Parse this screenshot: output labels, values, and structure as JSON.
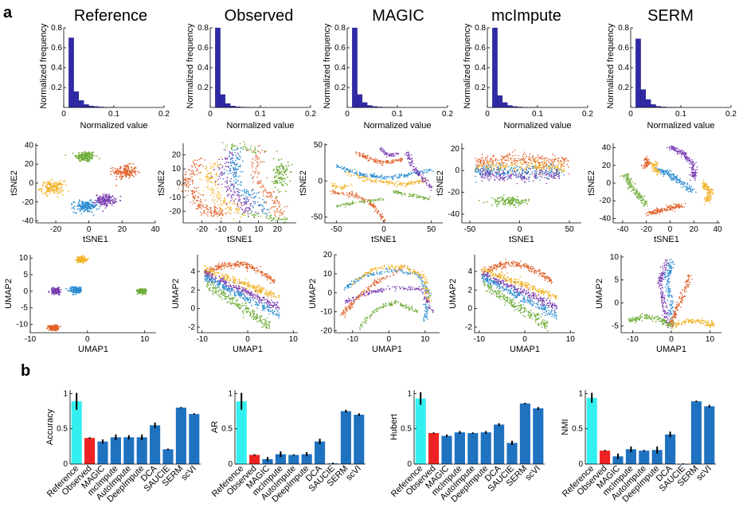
{
  "figure": {
    "panel_a_label": "a",
    "panel_b_label": "b",
    "methods": [
      "Reference",
      "Observed",
      "MAGIC",
      "mcImpute",
      "SERM"
    ],
    "colors": {
      "hist_bar": "#2f2aa6",
      "clusters": [
        "#e0622b",
        "#f2b42a",
        "#7b3fb2",
        "#70ad3a",
        "#2d8ed1"
      ],
      "bar_reference": "#33f0f0",
      "bar_observed": "#ee2222",
      "bar_other": "#1f72bf",
      "error_bar": "#000000"
    }
  },
  "chart_data": [
    {
      "type": "histogram",
      "row": "histograms",
      "methods": [
        "Reference",
        "Observed",
        "MAGIC",
        "mcImpute",
        "SERM"
      ],
      "xlabel": "Normalized value",
      "ylabel": "Normalized frequency",
      "xlim": [
        0,
        0.2
      ],
      "ylim": [
        0,
        0.8
      ],
      "xticks": [
        "0",
        "0.1",
        "0.2"
      ],
      "yticks": [
        "0.2",
        "0.4",
        "0.6",
        "0.8"
      ],
      "bin_width": 0.01,
      "series": [
        {
          "method": "Reference",
          "values": [
            0,
            0.7,
            0.16,
            0.07,
            0.03,
            0.015,
            0.01,
            0.005,
            0.003,
            0.002
          ]
        },
        {
          "method": "Observed",
          "values": [
            0,
            0.8,
            0.13,
            0.04,
            0.015,
            0.008,
            0.004,
            0.002,
            0.001,
            0.001
          ]
        },
        {
          "method": "MAGIC",
          "values": [
            0,
            0.8,
            0.13,
            0.05,
            0.02,
            0.01,
            0.005,
            0.003,
            0.002,
            0.001
          ]
        },
        {
          "method": "mcImpute",
          "values": [
            0,
            0.8,
            0.12,
            0.05,
            0.02,
            0.01,
            0.005,
            0.002,
            0.001,
            0.001
          ]
        },
        {
          "method": "SERM",
          "values": [
            0,
            0.69,
            0.18,
            0.08,
            0.03,
            0.012,
            0.006,
            0.003,
            0.002,
            0.001
          ]
        }
      ]
    },
    {
      "type": "scatter",
      "row": "tsne",
      "xlabel": "tSNE1",
      "ylabel": "tSNE2",
      "panels": [
        {
          "method": "Reference",
          "xlim": [
            -32,
            40
          ],
          "ylim": [
            -42,
            42
          ],
          "xticks": [
            "-20",
            "0",
            "20",
            "40"
          ],
          "yticks": [
            "40",
            "20",
            "0",
            "-20",
            "-40"
          ],
          "clusters": [
            {
              "color": 3,
              "cx": -2,
              "cy": 28,
              "sx": 3,
              "sy": 3
            },
            {
              "color": 0,
              "cx": 22,
              "cy": 12,
              "sx": 3.5,
              "sy": 3.5
            },
            {
              "color": 1,
              "cx": -22,
              "cy": -5,
              "sx": 3.5,
              "sy": 3.5
            },
            {
              "color": 2,
              "cx": 10,
              "cy": -18,
              "sx": 3,
              "sy": 3
            },
            {
              "color": 4,
              "cx": -2,
              "cy": -25,
              "sx": 3.5,
              "sy": 3
            }
          ]
        },
        {
          "method": "Observed",
          "xlim": [
            -30,
            30
          ],
          "ylim": [
            -28,
            28
          ],
          "xticks": [
            "-20",
            "-10",
            "0",
            "10",
            "20"
          ],
          "yticks": [
            "20",
            "10",
            "0",
            "-10",
            "-20"
          ]
        },
        {
          "method": "MAGIC",
          "xlim": [
            -62,
            62
          ],
          "ylim": [
            -58,
            52
          ],
          "xticks": [
            "-50",
            "0",
            "50"
          ],
          "yticks": [
            "50",
            "0",
            "-50"
          ]
        },
        {
          "method": "mcImpute",
          "xlim": [
            -58,
            62
          ],
          "ylim": [
            -48,
            25
          ],
          "xticks": [
            "-50",
            "0",
            "50"
          ],
          "yticks": [
            "20",
            "0",
            "-20",
            "-40"
          ]
        },
        {
          "method": "SERM",
          "xlim": [
            -48,
            42
          ],
          "ylim": [
            -45,
            45
          ],
          "xticks": [
            "-40",
            "-20",
            "0",
            "20",
            "40"
          ],
          "yticks": [
            "40",
            "20",
            "0",
            "-20",
            "-40"
          ]
        }
      ]
    },
    {
      "type": "scatter",
      "row": "umap",
      "xlabel": "UMAP1",
      "ylabel": "UMAP2",
      "panels": [
        {
          "method": "Reference",
          "xlim": [
            -10,
            12
          ],
          "ylim": [
            -12.5,
            11
          ],
          "xticks": [
            "-10",
            "0",
            "10"
          ],
          "yticks": [
            "10",
            "5",
            "0",
            "-5",
            "-10"
          ],
          "clusters": [
            {
              "color": 1,
              "cx": -1,
              "cy": 9.5,
              "sx": 0.4,
              "sy": 0.4
            },
            {
              "color": 2,
              "cx": -5.5,
              "cy": 0,
              "sx": 0.4,
              "sy": 0.5
            },
            {
              "color": 4,
              "cx": -2,
              "cy": 0.3,
              "sx": 0.5,
              "sy": 0.5
            },
            {
              "color": 3,
              "cx": 9.5,
              "cy": 0,
              "sx": 0.4,
              "sy": 0.4
            },
            {
              "color": 0,
              "cx": -6,
              "cy": -11,
              "sx": 0.5,
              "sy": 0.4
            }
          ]
        },
        {
          "method": "Observed",
          "xlim": [
            -11,
            11
          ],
          "ylim": [
            -2.6,
            5.8
          ],
          "xticks": [
            "-10",
            "0",
            "10"
          ],
          "yticks": [
            "4",
            "2",
            "0",
            "-2"
          ]
        },
        {
          "method": "MAGIC",
          "xlim": [
            -15,
            14
          ],
          "ylim": [
            -21,
            20
          ],
          "xticks": [
            "-10",
            "0",
            "10"
          ],
          "yticks": [
            "20",
            "10",
            "0",
            "-10",
            "-20"
          ]
        },
        {
          "method": "mcImpute",
          "xlim": [
            -11,
            11
          ],
          "ylim": [
            -2.6,
            5.8
          ],
          "xticks": [
            "-10",
            "0",
            "10"
          ],
          "yticks": [
            "4",
            "2",
            "0",
            "-2"
          ]
        },
        {
          "method": "SERM",
          "xlim": [
            -13,
            13
          ],
          "ylim": [
            -6.5,
            10.5
          ],
          "xticks": [
            "-10",
            "0",
            "10"
          ],
          "yticks": [
            "10",
            "5",
            "0",
            "-5"
          ]
        }
      ]
    },
    {
      "type": "bar",
      "row": "metrics",
      "categories": [
        "Reference",
        "Observed",
        "MAGIC",
        "mcImpute",
        "AutoImpute",
        "DeepImpute",
        "DCA",
        "SAUCIE",
        "SERM",
        "scVI"
      ],
      "ylim": [
        0,
        1.05
      ],
      "yticks": [
        "0",
        "0.5",
        "1"
      ],
      "panels": [
        {
          "ylabel": "Accuracy",
          "values": [
            0.89,
            0.37,
            0.32,
            0.38,
            0.38,
            0.38,
            0.55,
            0.21,
            0.8,
            0.71
          ],
          "errors": [
            0.12,
            0.01,
            0.03,
            0.04,
            0.03,
            0.04,
            0.04,
            0.01,
            0.01,
            0.01
          ]
        },
        {
          "ylabel": "AR",
          "values": [
            0.89,
            0.13,
            0.07,
            0.14,
            0.13,
            0.14,
            0.32,
            0.01,
            0.75,
            0.7
          ],
          "errors": [
            0.12,
            0.01,
            0.03,
            0.04,
            0.01,
            0.03,
            0.04,
            0.01,
            0.02,
            0.02
          ]
        },
        {
          "ylabel": "Hubert",
          "values": [
            0.93,
            0.44,
            0.4,
            0.45,
            0.44,
            0.45,
            0.56,
            0.3,
            0.86,
            0.79
          ],
          "errors": [
            0.09,
            0.01,
            0.02,
            0.02,
            0.01,
            0.02,
            0.02,
            0.03,
            0.01,
            0.02
          ]
        },
        {
          "ylabel": "NMI",
          "values": [
            0.94,
            0.19,
            0.11,
            0.21,
            0.19,
            0.2,
            0.42,
            0.0,
            0.89,
            0.82
          ],
          "errors": [
            0.07,
            0.01,
            0.04,
            0.04,
            0.01,
            0.05,
            0.04,
            0.01,
            0.01,
            0.02
          ]
        }
      ]
    }
  ]
}
